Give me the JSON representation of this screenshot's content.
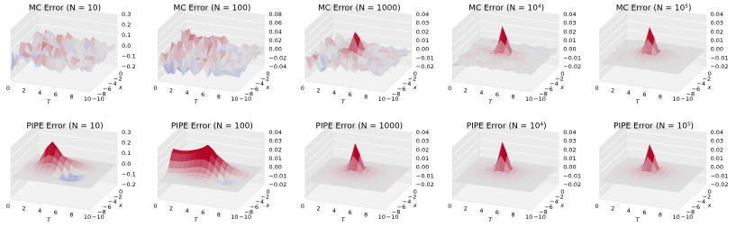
{
  "panels": [
    {
      "title": "MC Error (N = 10)",
      "zticks": [
        "0.3",
        "0.2",
        "0.1",
        "0.0",
        "−0.1",
        "−0.2"
      ],
      "tticks": [
        "0",
        "2",
        "4",
        "6",
        "8",
        "10"
      ],
      "t_label": "T",
      "xticks": [
        "−10",
        "−8",
        "−6",
        "−4",
        "−2",
        "0"
      ],
      "x_label": "x"
    },
    {
      "title": "MC Error (N = 100)",
      "zticks": [
        "0.08",
        "0.06",
        "0.04",
        "0.02",
        "0.00",
        "−0.02",
        "−0.04"
      ],
      "tticks": [
        "0",
        "2",
        "4",
        "6",
        "8",
        "10"
      ],
      "t_label": "T",
      "xticks": [
        "−10",
        "−8",
        "−6",
        "−4",
        "−2",
        "0"
      ],
      "x_label": "x"
    },
    {
      "title": "MC Error (N = 1000)",
      "zticks": [
        "0.04",
        "0.03",
        "0.02",
        "0.01",
        "0.00",
        "−0.01",
        "−0.02"
      ],
      "tticks": [
        "0",
        "2",
        "4",
        "6",
        "8",
        "10"
      ],
      "t_label": "T",
      "xticks": [
        "−10",
        "−8",
        "−6",
        "−4",
        "−2",
        "0"
      ],
      "x_label": "x"
    },
    {
      "title": "MC Error (N = 10⁴)",
      "zticks": [
        "0.04",
        "0.03",
        "0.02",
        "0.01",
        "0.00",
        "−0.01",
        "−0.02"
      ],
      "tticks": [
        "0",
        "2",
        "4",
        "6",
        "8",
        "10"
      ],
      "t_label": "T",
      "xticks": [
        "−10",
        "−8",
        "−6",
        "−4",
        "−2",
        "0"
      ],
      "x_label": "x"
    },
    {
      "title": "MC Error (N = 10⁵)",
      "zticks": [
        "0.04",
        "0.03",
        "0.02",
        "0.01",
        "0.00",
        "−0.01",
        "−0.02"
      ],
      "tticks": [
        "0",
        "2",
        "4",
        "6",
        "8",
        "10"
      ],
      "t_label": "T",
      "xticks": [
        "−10",
        "−8",
        "−6",
        "−4",
        "−2",
        "0"
      ],
      "x_label": "x"
    },
    {
      "title": "PIPE Error (N = 10)",
      "zticks": [
        "0.3",
        "0.2",
        "0.1",
        "0.0",
        "−0.1",
        "−0.2"
      ],
      "tticks": [
        "0",
        "2",
        "4",
        "6",
        "8",
        "10"
      ],
      "t_label": "T",
      "xticks": [
        "−10",
        "−8",
        "−6",
        "−4",
        "−2",
        "0"
      ],
      "x_label": "x"
    },
    {
      "title": "PIPE Error (N = 100)",
      "zticks": [
        "0.04",
        "0.03",
        "0.02",
        "0.01",
        "0.00",
        "−0.01",
        "−0.02"
      ],
      "tticks": [
        "0",
        "2",
        "4",
        "6",
        "8",
        "10"
      ],
      "t_label": "T",
      "xticks": [
        "−10",
        "−8",
        "−6",
        "−4",
        "−2",
        "0"
      ],
      "x_label": "x"
    },
    {
      "title": "PIPE Error (N = 1000)",
      "zticks": [
        "0.04",
        "0.03",
        "0.02",
        "0.01",
        "0.00",
        "−0.01",
        "−0.02"
      ],
      "tticks": [
        "0",
        "2",
        "4",
        "6",
        "8",
        "10"
      ],
      "t_label": "T",
      "xticks": [
        "−10",
        "−8",
        "−6",
        "−4",
        "−2",
        "0"
      ],
      "x_label": "x"
    },
    {
      "title": "PIPE Error (N = 10⁴)",
      "zticks": [
        "0.04",
        "0.03",
        "0.02",
        "0.01",
        "0.00",
        "−0.01",
        "−0.02"
      ],
      "tticks": [
        "0",
        "2",
        "4",
        "6",
        "8",
        "10"
      ],
      "t_label": "T",
      "xticks": [
        "−10",
        "−8",
        "−6",
        "−4",
        "−2",
        "0"
      ],
      "x_label": "x"
    },
    {
      "title": "PIPE Error (N = 10⁵)",
      "zticks": [
        "0.04",
        "0.03",
        "0.02",
        "0.01",
        "0.00",
        "−0.01",
        "−0.02"
      ],
      "tticks": [
        "0",
        "2",
        "4",
        "6",
        "8",
        "10"
      ],
      "t_label": "T",
      "xticks": [
        "−10",
        "−8",
        "−6",
        "−4",
        "−2",
        "0"
      ],
      "x_label": "x"
    }
  ]
}
